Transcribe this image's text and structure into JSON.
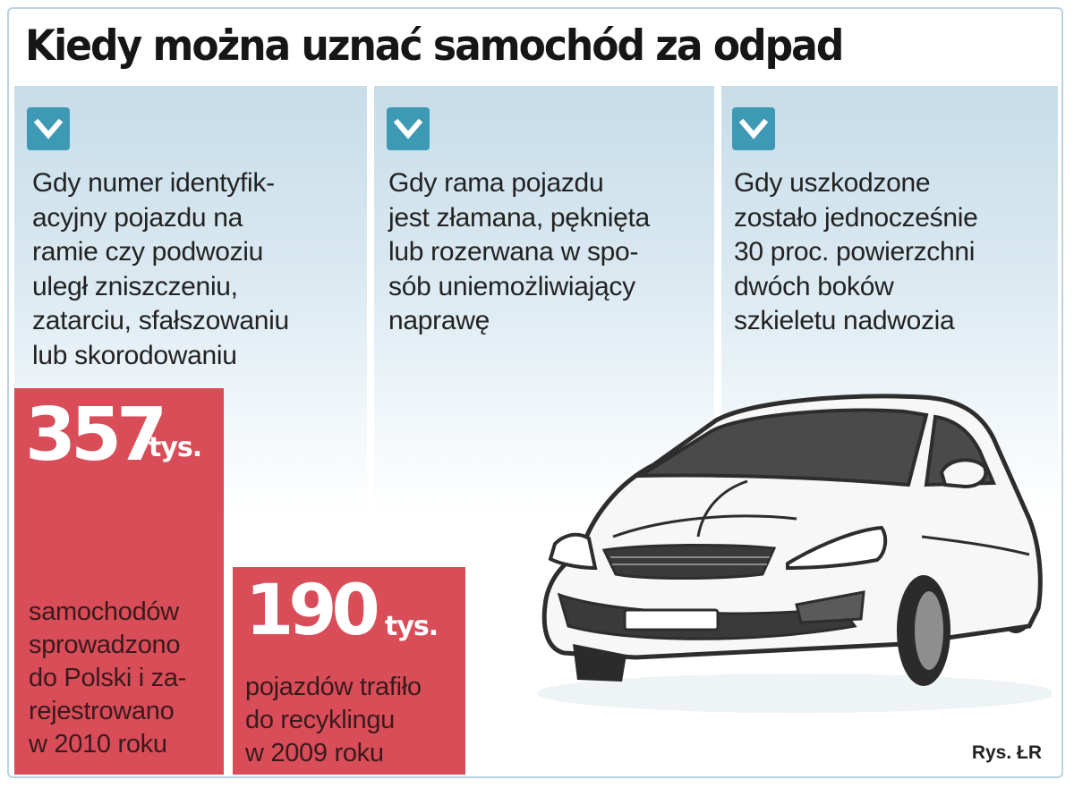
{
  "title": "Kiedy można uznać samochód za odpad",
  "columns": [
    {
      "icon": "checkmark-icon",
      "lines": [
        "Gdy numer identyfik-",
        "acyjny pojazdu na",
        "ramie czy podwoziu",
        "uległ zniszczeniu,",
        "zatarciu, sfałszowaniu",
        "lub skorodowaniu"
      ]
    },
    {
      "icon": "checkmark-icon",
      "lines": [
        "Gdy rama pojazdu",
        "jest złamana, pęknięta",
        "lub rozerwana w spo-",
        "sób uniemożliwiający",
        "naprawę"
      ]
    },
    {
      "icon": "checkmark-icon",
      "lines": [
        "Gdy uszkodzone",
        "zostało jednocześnie",
        "30 proc. powierzchni",
        "dwóch boków",
        "szkieletu nadwozia"
      ]
    }
  ],
  "stats": [
    {
      "number": "357",
      "unit": "tys.",
      "lines": [
        "samochodów",
        "sprowadzono",
        "do Polski i za-",
        "rejestrowano",
        "w 2010 roku"
      ]
    },
    {
      "number": "190",
      "unit": "tys.",
      "lines": [
        "pojazdów trafiło",
        "do recyklingu",
        "w 2009 roku"
      ]
    }
  ],
  "credit": "Rys. ŁR",
  "colors": {
    "accent_red": "#d84d58",
    "check_blue": "#3d99b4",
    "panel_blue": "#c7dde9"
  }
}
